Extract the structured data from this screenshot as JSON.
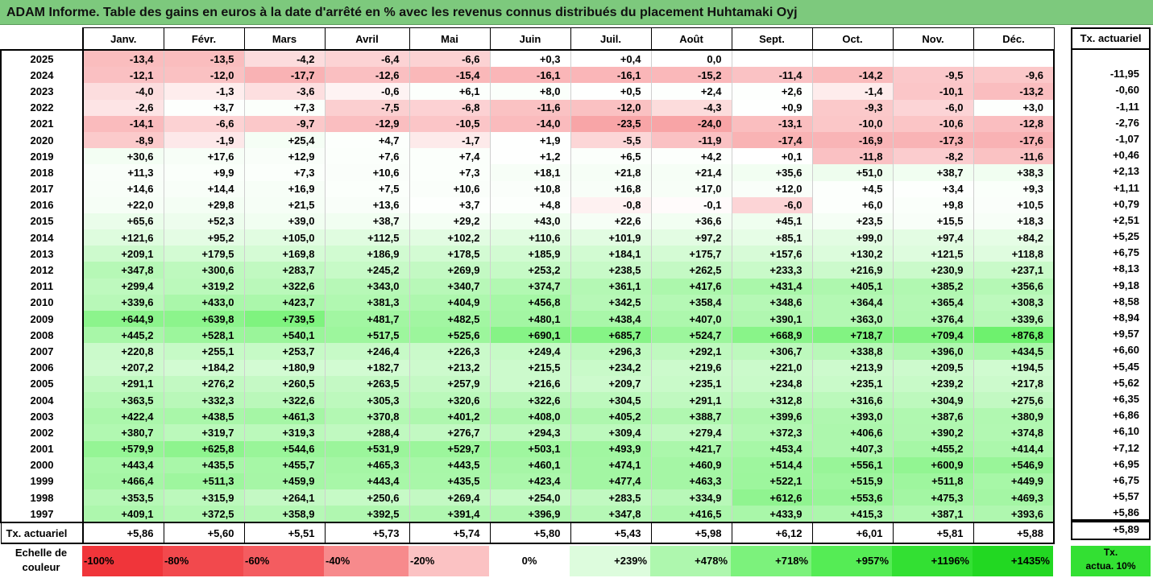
{
  "title": "ADAM Informe. Table des gains en euros à la date d'arrêté en % avec les revenus connus distribués du placement Huhtamaki Oyj",
  "months": [
    "Janv.",
    "Févr.",
    "Mars",
    "Avril",
    "Mai",
    "Juin",
    "Juil.",
    "Août",
    "Sept.",
    "Oct.",
    "Nov.",
    "Déc."
  ],
  "tx_header": "Tx. actuariel",
  "rows": [
    {
      "year": "2025",
      "v": [
        "-13,4",
        "-13,5",
        "-4,2",
        "-6,4",
        "-6,6",
        "+0,3",
        "+0,4",
        "0,0",
        "",
        "",
        "",
        ""
      ],
      "tx": ""
    },
    {
      "year": "2024",
      "v": [
        "-12,1",
        "-12,0",
        "-17,7",
        "-12,6",
        "-15,4",
        "-16,1",
        "-16,1",
        "-15,2",
        "-11,4",
        "-14,2",
        "-9,5",
        "-9,6"
      ],
      "tx": "-11,95"
    },
    {
      "year": "2023",
      "v": [
        "-4,0",
        "-1,3",
        "-3,6",
        "-0,6",
        "+6,1",
        "+8,0",
        "+0,5",
        "+2,4",
        "+2,6",
        "-1,4",
        "-10,1",
        "-13,2"
      ],
      "tx": "-0,60"
    },
    {
      "year": "2022",
      "v": [
        "-2,6",
        "+3,7",
        "+7,3",
        "-7,5",
        "-6,8",
        "-11,6",
        "-12,0",
        "-4,3",
        "+0,9",
        "-9,3",
        "-6,0",
        "+3,0"
      ],
      "tx": "-1,11"
    },
    {
      "year": "2021",
      "v": [
        "-14,1",
        "-6,6",
        "-9,7",
        "-12,9",
        "-10,5",
        "-14,0",
        "-23,5",
        "-24,0",
        "-13,1",
        "-10,0",
        "-10,6",
        "-12,8"
      ],
      "tx": "-2,76"
    },
    {
      "year": "2020",
      "v": [
        "-8,9",
        "-1,9",
        "+25,4",
        "+4,7",
        "-1,7",
        "+1,9",
        "-5,5",
        "-11,9",
        "-17,4",
        "-16,9",
        "-17,3",
        "-17,6"
      ],
      "tx": "-1,07"
    },
    {
      "year": "2019",
      "v": [
        "+30,6",
        "+17,6",
        "+12,9",
        "+7,6",
        "+7,4",
        "+1,2",
        "+6,5",
        "+4,2",
        "+0,1",
        "-11,8",
        "-8,2",
        "-11,6"
      ],
      "tx": "+0,46"
    },
    {
      "year": "2018",
      "v": [
        "+11,3",
        "+9,9",
        "+7,3",
        "+10,6",
        "+7,3",
        "+18,1",
        "+21,8",
        "+21,4",
        "+35,6",
        "+51,0",
        "+38,7",
        "+38,3"
      ],
      "tx": "+2,13"
    },
    {
      "year": "2017",
      "v": [
        "+14,6",
        "+14,4",
        "+16,9",
        "+7,5",
        "+10,6",
        "+10,8",
        "+16,8",
        "+17,0",
        "+12,0",
        "+4,5",
        "+3,4",
        "+9,3"
      ],
      "tx": "+1,11"
    },
    {
      "year": "2016",
      "v": [
        "+22,0",
        "+29,8",
        "+21,5",
        "+13,6",
        "+3,7",
        "+4,8",
        "-0,8",
        "-0,1",
        "-6,0",
        "+6,0",
        "+9,8",
        "+10,5"
      ],
      "tx": "+0,79"
    },
    {
      "year": "2015",
      "v": [
        "+65,6",
        "+52,3",
        "+39,0",
        "+38,7",
        "+29,2",
        "+43,0",
        "+22,6",
        "+36,6",
        "+45,1",
        "+23,5",
        "+15,5",
        "+18,3"
      ],
      "tx": "+2,51"
    },
    {
      "year": "2014",
      "v": [
        "+121,6",
        "+95,2",
        "+105,0",
        "+112,5",
        "+102,2",
        "+110,6",
        "+101,9",
        "+97,2",
        "+85,1",
        "+99,0",
        "+97,4",
        "+84,2"
      ],
      "tx": "+5,25"
    },
    {
      "year": "2013",
      "v": [
        "+209,1",
        "+179,5",
        "+169,8",
        "+186,9",
        "+178,5",
        "+185,9",
        "+184,1",
        "+175,7",
        "+157,6",
        "+130,2",
        "+121,5",
        "+118,8"
      ],
      "tx": "+6,75"
    },
    {
      "year": "2012",
      "v": [
        "+347,8",
        "+300,6",
        "+283,7",
        "+245,2",
        "+269,9",
        "+253,2",
        "+238,5",
        "+262,5",
        "+233,3",
        "+216,9",
        "+230,9",
        "+237,1"
      ],
      "tx": "+8,13"
    },
    {
      "year": "2011",
      "v": [
        "+299,4",
        "+319,2",
        "+322,6",
        "+343,0",
        "+340,7",
        "+374,7",
        "+361,1",
        "+417,6",
        "+431,4",
        "+405,1",
        "+385,2",
        "+356,6"
      ],
      "tx": "+9,18"
    },
    {
      "year": "2010",
      "v": [
        "+339,6",
        "+433,0",
        "+423,7",
        "+381,3",
        "+404,9",
        "+456,8",
        "+342,5",
        "+358,4",
        "+348,6",
        "+364,4",
        "+365,4",
        "+308,3"
      ],
      "tx": "+8,58"
    },
    {
      "year": "2009",
      "v": [
        "+644,9",
        "+639,8",
        "+739,5",
        "+481,7",
        "+482,5",
        "+480,1",
        "+438,4",
        "+407,0",
        "+390,1",
        "+363,0",
        "+376,4",
        "+339,6"
      ],
      "tx": "+8,94"
    },
    {
      "year": "2008",
      "v": [
        "+445,2",
        "+528,1",
        "+540,1",
        "+517,5",
        "+525,6",
        "+690,1",
        "+685,7",
        "+524,7",
        "+668,9",
        "+718,7",
        "+709,4",
        "+876,8"
      ],
      "tx": "+9,57"
    },
    {
      "year": "2007",
      "v": [
        "+220,8",
        "+255,1",
        "+253,7",
        "+246,4",
        "+226,3",
        "+249,4",
        "+296,3",
        "+292,1",
        "+306,7",
        "+338,8",
        "+396,0",
        "+434,5"
      ],
      "tx": "+6,60"
    },
    {
      "year": "2006",
      "v": [
        "+207,2",
        "+184,2",
        "+180,9",
        "+182,7",
        "+213,2",
        "+215,5",
        "+234,2",
        "+219,6",
        "+221,0",
        "+213,9",
        "+209,5",
        "+194,5"
      ],
      "tx": "+5,45"
    },
    {
      "year": "2005",
      "v": [
        "+291,1",
        "+276,2",
        "+260,5",
        "+263,5",
        "+257,9",
        "+216,6",
        "+209,7",
        "+235,1",
        "+234,8",
        "+235,1",
        "+239,2",
        "+217,8"
      ],
      "tx": "+5,62"
    },
    {
      "year": "2004",
      "v": [
        "+363,5",
        "+332,3",
        "+322,6",
        "+305,3",
        "+320,6",
        "+322,6",
        "+304,5",
        "+291,1",
        "+312,8",
        "+316,6",
        "+304,9",
        "+275,6"
      ],
      "tx": "+6,35"
    },
    {
      "year": "2003",
      "v": [
        "+422,4",
        "+438,5",
        "+461,3",
        "+370,8",
        "+401,2",
        "+408,0",
        "+405,2",
        "+388,7",
        "+399,6",
        "+393,0",
        "+387,6",
        "+380,9"
      ],
      "tx": "+6,86"
    },
    {
      "year": "2002",
      "v": [
        "+380,7",
        "+319,7",
        "+319,3",
        "+288,4",
        "+276,7",
        "+294,3",
        "+309,4",
        "+279,4",
        "+372,3",
        "+406,6",
        "+390,2",
        "+374,8"
      ],
      "tx": "+6,10"
    },
    {
      "year": "2001",
      "v": [
        "+579,9",
        "+625,8",
        "+544,6",
        "+531,9",
        "+529,7",
        "+503,1",
        "+493,9",
        "+421,7",
        "+453,4",
        "+407,3",
        "+455,2",
        "+414,4"
      ],
      "tx": "+7,12"
    },
    {
      "year": "2000",
      "v": [
        "+443,4",
        "+435,5",
        "+455,7",
        "+465,3",
        "+443,5",
        "+460,1",
        "+474,1",
        "+460,9",
        "+514,4",
        "+556,1",
        "+600,9",
        "+546,9"
      ],
      "tx": "+6,95"
    },
    {
      "year": "1999",
      "v": [
        "+466,4",
        "+511,3",
        "+459,9",
        "+443,4",
        "+435,5",
        "+423,4",
        "+477,4",
        "+463,3",
        "+522,1",
        "+515,9",
        "+511,8",
        "+449,9"
      ],
      "tx": "+6,75"
    },
    {
      "year": "1998",
      "v": [
        "+353,5",
        "+315,9",
        "+264,1",
        "+250,6",
        "+269,4",
        "+254,0",
        "+283,5",
        "+334,9",
        "+612,6",
        "+553,6",
        "+475,3",
        "+469,3"
      ],
      "tx": "+5,57"
    },
    {
      "year": "1997",
      "v": [
        "+409,1",
        "+372,5",
        "+358,9",
        "+392,5",
        "+391,4",
        "+396,9",
        "+347,8",
        "+416,5",
        "+433,9",
        "+415,3",
        "+387,1",
        "+393,6"
      ],
      "tx": "+5,86"
    }
  ],
  "footer": {
    "label": "Tx. actuariel",
    "v": [
      "+5,86",
      "+5,60",
      "+5,51",
      "+5,73",
      "+5,74",
      "+5,80",
      "+5,43",
      "+5,98",
      "+6,12",
      "+6,01",
      "+5,81",
      "+5,88"
    ],
    "tx": "+5,89"
  },
  "scale": {
    "label_line1": "Echelle de",
    "label_line2": "couleur",
    "items": [
      {
        "text": "-100%",
        "color": "#f0353a"
      },
      {
        "text": "-80%",
        "color": "#f2494d"
      },
      {
        "text": "-60%",
        "color": "#f45c60"
      },
      {
        "text": "-40%",
        "color": "#f78a8c"
      },
      {
        "text": "-20%",
        "color": "#fbc2c3"
      },
      {
        "text": "0%",
        "color": "#ffffff"
      },
      {
        "text": "+239%",
        "color": "#ddfcdd"
      },
      {
        "text": "+478%",
        "color": "#aef7ae"
      },
      {
        "text": "+718%",
        "color": "#7cf27c"
      },
      {
        "text": "+957%",
        "color": "#55ec55"
      },
      {
        "text": "+1196%",
        "color": "#33e033"
      },
      {
        "text": "+1435%",
        "color": "#22d822"
      }
    ],
    "tx_line1": "Tx.",
    "tx_line2": "actua. 10%"
  }
}
